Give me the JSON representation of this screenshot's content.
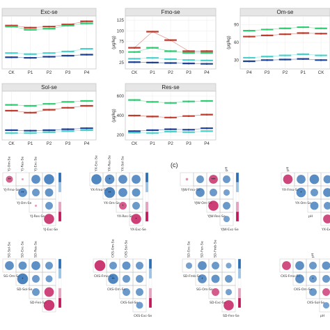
{
  "colors": {
    "CK": "#c0392b",
    "P1": "#2ecc71",
    "P2": "#1c3f94",
    "P3": "#48d1cc",
    "corr_pos": "#c2185b",
    "corr_neg": "#2d6fb5"
  },
  "chart_data": [
    {
      "type": "line",
      "title": "Exc-se",
      "categories": [
        "CK",
        "P1",
        "P2",
        "P3",
        "P4"
      ],
      "ylabel": "",
      "ylim": [
        0,
        100
      ],
      "series": [
        {
          "color": "#c0392b",
          "values": [
            82,
            78,
            80,
            84,
            90
          ]
        },
        {
          "color": "#2ecc71",
          "values": [
            80,
            74,
            76,
            82,
            86
          ]
        },
        {
          "color": "#48d1cc",
          "values": [
            30,
            28,
            30,
            33,
            38
          ]
        },
        {
          "color": "#1c3f94",
          "values": [
            22,
            21,
            23,
            25,
            27
          ]
        }
      ]
    },
    {
      "type": "line",
      "title": "Fmo-se",
      "categories": [
        "CK",
        "P1",
        "P2",
        "P3",
        "P4"
      ],
      "ylabel": "(μg/kg)",
      "yticks": [
        "25",
        "50",
        "75",
        "100",
        "125"
      ],
      "ylim": [
        10,
        135
      ],
      "series": [
        {
          "color": "#c0392b",
          "values": [
            60,
            98,
            78,
            52,
            52
          ]
        },
        {
          "color": "#2ecc71",
          "values": [
            50,
            60,
            52,
            48,
            48
          ]
        },
        {
          "color": "#48d1cc",
          "values": [
            34,
            36,
            33,
            31,
            30
          ]
        },
        {
          "color": "#1c3f94",
          "values": [
            26,
            25,
            24,
            23,
            22
          ]
        }
      ]
    },
    {
      "type": "line",
      "title": "Om-se",
      "categories": [
        "P4",
        "P3",
        "P2",
        "P1",
        "CK"
      ],
      "ylabel": "(μg/kg)",
      "yticks": [
        "30",
        "60",
        "90"
      ],
      "ylim": [
        15,
        105
      ],
      "series": [
        {
          "color": "#2ecc71",
          "values": [
            80,
            82,
            84,
            86,
            84
          ]
        },
        {
          "color": "#c0392b",
          "values": [
            70,
            72,
            74,
            76,
            75
          ]
        },
        {
          "color": "#48d1cc",
          "values": [
            34,
            36,
            38,
            40,
            38
          ]
        },
        {
          "color": "#1c3f94",
          "values": [
            28,
            30,
            31,
            32,
            30
          ]
        }
      ]
    },
    {
      "type": "line",
      "title": "Sol-se",
      "categories": [
        "CK",
        "P1",
        "P2",
        "P3",
        "P4"
      ],
      "ylabel": "",
      "ylim": [
        0,
        100
      ],
      "series": [
        {
          "color": "#2ecc71",
          "values": [
            72,
            70,
            74,
            78,
            80
          ]
        },
        {
          "color": "#c0392b",
          "values": [
            60,
            56,
            62,
            66,
            70
          ]
        },
        {
          "color": "#1c3f94",
          "values": [
            20,
            19,
            20,
            22,
            24
          ]
        },
        {
          "color": "#48d1cc",
          "values": [
            14,
            14,
            16,
            18,
            20
          ]
        }
      ]
    },
    {
      "type": "line",
      "title": "Res-se",
      "categories": [
        "CK",
        "P1",
        "P2",
        "P3",
        "P4"
      ],
      "ylabel": "(μg/kg)",
      "yticks": [
        "200",
        "400",
        "600"
      ],
      "ylim": [
        150,
        650
      ],
      "series": [
        {
          "color": "#2ecc71",
          "values": [
            560,
            540,
            530,
            545,
            550
          ]
        },
        {
          "color": "#c0392b",
          "values": [
            400,
            390,
            380,
            395,
            410
          ]
        },
        {
          "color": "#1c3f94",
          "values": [
            240,
            250,
            260,
            255,
            270
          ]
        },
        {
          "color": "#48d1cc",
          "values": [
            225,
            220,
            235,
            230,
            240
          ]
        }
      ]
    }
  ],
  "panel_label": "(c)",
  "corr_matrices": [
    {
      "row_labels": [
        "YJ-Fmo-Se",
        "YJ-Om-Se",
        "YJ-Res-Se",
        "YJ-Exc-Se"
      ],
      "col_labels": [
        "YJ-Om-Se",
        "YJ-Res-Se",
        "YJ-Exc-Se",
        ""
      ],
      "cells": [
        [
          0.55,
          0.1,
          -0.7,
          -0.8
        ],
        [
          null,
          -0.7,
          -0.6,
          -0.65
        ],
        [
          null,
          null,
          0.15,
          -0.6
        ],
        [
          null,
          null,
          null,
          0.8
        ]
      ],
      "stars": [
        [
          "**",
          "",
          "",
          ""
        ],
        [
          "",
          "**",
          "",
          ""
        ],
        [
          "",
          "",
          "",
          ""
        ],
        [
          "",
          "",
          "",
          ""
        ]
      ]
    },
    {
      "row_labels": [
        "YX-Fmo-Se",
        "YX-Om-Se",
        "YX-Res-Se",
        "YX-Exc-Se"
      ],
      "col_labels": [
        "YX-Exc-Se",
        "YX-Res-Se",
        "YX-Sol-Se",
        ""
      ],
      "cells": [
        [
          -0.8,
          -0.75,
          -0.7,
          -0.7
        ],
        [
          null,
          -0.85,
          -0.7,
          -0.65
        ],
        [
          null,
          null,
          0.6,
          -0.6
        ],
        [
          null,
          null,
          null,
          0.8
        ]
      ],
      "stars": [
        [
          "",
          "*",
          "",
          ""
        ],
        [
          "",
          "**",
          "",
          ""
        ],
        [
          "",
          "",
          "*",
          ""
        ],
        [
          "",
          "",
          "",
          "*"
        ]
      ]
    },
    {
      "row_labels": [
        "YJW-Fmo-Se",
        "YJW-Om-Se",
        "YJW-Res-Se",
        "YJW-Exc-Se"
      ],
      "col_labels": [
        "",
        "",
        "",
        "pH"
      ],
      "cells": [
        [
          0.2,
          -0.6,
          0.7,
          -0.6
        ],
        [
          null,
          -0.7,
          -0.6,
          -0.5
        ],
        [
          null,
          null,
          0.8,
          -0.6
        ],
        [
          null,
          null,
          null,
          -0.5
        ]
      ],
      "stars": [
        [
          "",
          "",
          "***",
          ""
        ],
        [
          "",
          "",
          "",
          ""
        ],
        [
          "",
          "",
          "",
          ""
        ],
        [
          "",
          "",
          "",
          ""
        ]
      ]
    },
    {
      "row_labels": [
        "YX-Fmo-Se",
        "YX-Om-Se",
        "pH",
        "YX-Exc-Se"
      ],
      "col_labels": [
        "pH",
        "",
        "",
        ""
      ],
      "cells": [
        [
          0.75,
          -0.7,
          -0.75,
          -0.65
        ],
        [
          null,
          -0.75,
          -0.6,
          -0.7
        ],
        [
          null,
          null,
          -0.65,
          -0.6
        ],
        [
          null,
          null,
          null,
          0.7
        ]
      ],
      "stars": [
        [
          "",
          "",
          "",
          ""
        ],
        [
          "",
          "*",
          "",
          ""
        ],
        [
          "",
          "",
          "",
          ""
        ],
        [
          "",
          "",
          "",
          ""
        ]
      ]
    },
    {
      "row_labels": [
        "SG-Om-Se",
        "SD-Sol-Se",
        "SD-Fen-Se",
        ""
      ],
      "col_labels": [
        "SG-Sol-Se",
        "SD-Exc-Se",
        "SD-Res-Se",
        ""
      ],
      "cells": [
        [
          -0.7,
          -0.65,
          -0.7,
          -0.6
        ],
        [
          null,
          -0.85,
          -0.6,
          -0.55
        ],
        [
          null,
          null,
          -0.6,
          0.75
        ],
        [
          null,
          null,
          null,
          0.85
        ]
      ],
      "stars": [
        [
          "",
          "",
          "",
          ""
        ],
        [
          "",
          "*",
          "",
          ""
        ],
        [
          "",
          "",
          "",
          ""
        ],
        [
          "",
          "",
          "",
          ""
        ]
      ]
    },
    {
      "row_labels": [
        "CKS-Fmo-Se",
        "CKS-Om-Se",
        "CKS-Sol-Se",
        "CKS-Exc-Se"
      ],
      "col_labels": [
        "",
        "CKS-Om-Se",
        "CKS-Sol-Se",
        ""
      ],
      "cells": [
        [
          0.85,
          -0.6,
          -0.65,
          -0.6
        ],
        [
          null,
          -0.8,
          -0.6,
          -0.6
        ],
        [
          null,
          null,
          -0.6,
          -0.6
        ],
        [
          null,
          null,
          null,
          -0.55
        ]
      ],
      "stars": [
        [
          "",
          "",
          "",
          ""
        ],
        [
          "",
          "**",
          "",
          ""
        ],
        [
          "",
          "",
          "",
          ""
        ],
        [
          "",
          "",
          "",
          ""
        ]
      ]
    },
    {
      "row_labels": [
        "SD-Fmb-Se",
        "SG-Om-Se",
        "SD-Exc-Se",
        "SD-Fen-Se"
      ],
      "col_labels": [
        "SD-Exc-Se",
        "SD-Fen-Se",
        "SD-Fmb-Se",
        ""
      ],
      "cells": [
        [
          -0.5,
          -0.7,
          -0.6,
          -0.45
        ],
        [
          null,
          -0.7,
          -0.65,
          -0.6
        ],
        [
          null,
          null,
          0.6,
          -0.5
        ],
        [
          null,
          null,
          null,
          0.8
        ]
      ],
      "stars": [
        [
          "",
          "",
          "",
          ""
        ],
        [
          "",
          "*",
          "",
          ""
        ],
        [
          "",
          "",
          "",
          ""
        ],
        [
          "",
          "",
          "",
          ""
        ]
      ]
    },
    {
      "row_labels": [
        "CKS-Fmo-Se",
        "CKS-Om-Se",
        "CKS-Sol-Se",
        "pH"
      ],
      "col_labels": [
        "",
        "",
        "pH",
        ""
      ],
      "cells": [
        [
          0.7,
          -0.7,
          -0.6,
          -0.65
        ],
        [
          null,
          -0.7,
          -0.6,
          -0.6
        ],
        [
          null,
          null,
          -0.6,
          0.6
        ],
        [
          null,
          null,
          null,
          -0.5
        ]
      ],
      "stars": [
        [
          "",
          "",
          "",
          ""
        ],
        [
          "",
          "",
          "*",
          ""
        ],
        [
          "",
          "",
          "",
          ""
        ],
        [
          "",
          "",
          "",
          ""
        ]
      ]
    }
  ]
}
